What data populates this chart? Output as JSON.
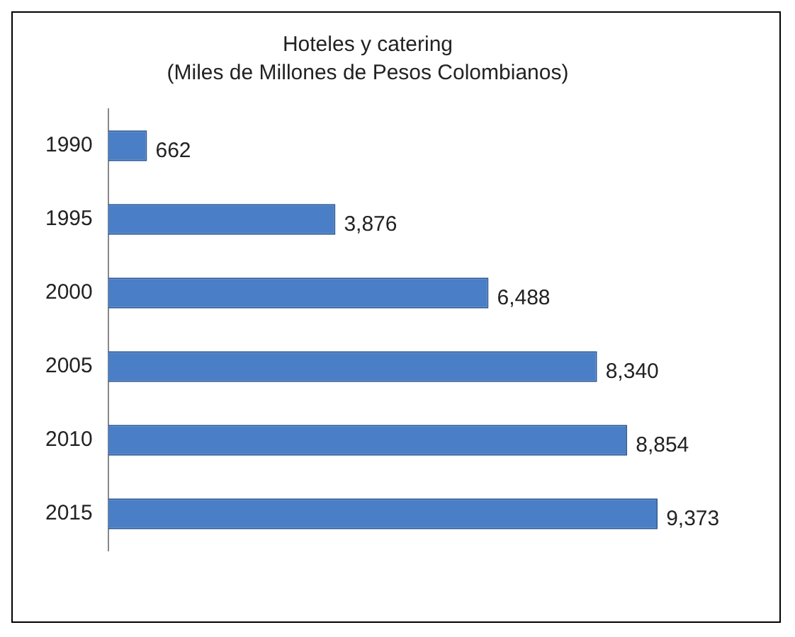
{
  "chart_data": {
    "type": "bar",
    "orientation": "horizontal",
    "title": "Hoteles y catering",
    "subtitle": "(Miles de Millones de Pesos Colombianos)",
    "categories": [
      "1990",
      "1995",
      "2000",
      "2005",
      "2010",
      "2015"
    ],
    "values": [
      662,
      3876,
      6488,
      8340,
      8854,
      9373
    ],
    "value_labels": [
      "662",
      "3,876",
      "6,488",
      "8,340",
      "8,854",
      "9,373"
    ],
    "color": "#4a7ec6",
    "grid": false,
    "legend": false
  }
}
